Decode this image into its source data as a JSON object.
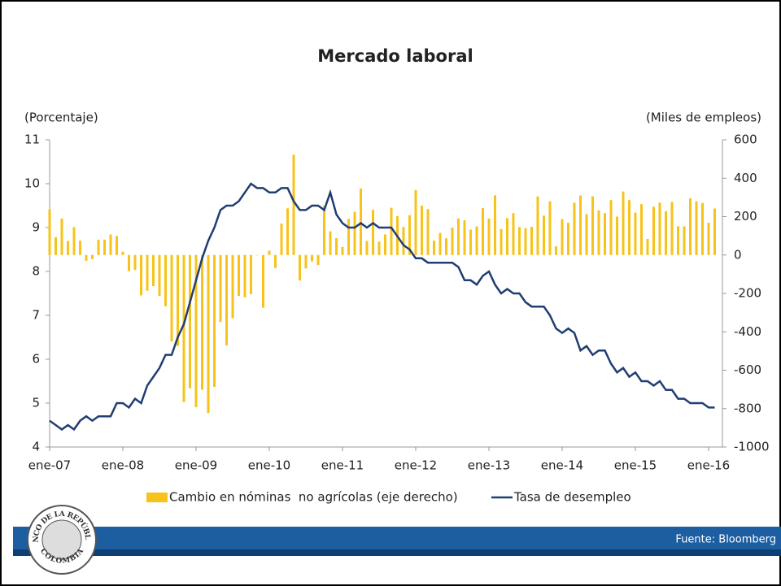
{
  "chart_data": {
    "type": "bar_line",
    "title": "Mercado laboral",
    "y_label": "(Porcentaje)",
    "y2_label": "(Miles de empleos)",
    "source": "Fuente: Bloomberg",
    "logo": {
      "top": "BANCO DE LA REPÚBLICA",
      "bottom": "COLOMBIA"
    },
    "categories": [
      "ene-07",
      null,
      null,
      null,
      null,
      null,
      null,
      null,
      null,
      null,
      null,
      null,
      "ene-08",
      null,
      null,
      null,
      null,
      null,
      null,
      null,
      null,
      null,
      null,
      null,
      "ene-09",
      null,
      null,
      null,
      null,
      null,
      null,
      null,
      null,
      null,
      null,
      null,
      "ene-10",
      null,
      null,
      null,
      null,
      null,
      null,
      null,
      null,
      null,
      null,
      null,
      "ene-11",
      null,
      null,
      null,
      null,
      null,
      null,
      null,
      null,
      null,
      null,
      null,
      "ene-12",
      null,
      null,
      null,
      null,
      null,
      null,
      null,
      null,
      null,
      null,
      null,
      "ene-13",
      null,
      null,
      null,
      null,
      null,
      null,
      null,
      null,
      null,
      null,
      null,
      "ene-14",
      null,
      null,
      null,
      null,
      null,
      null,
      null,
      null,
      null,
      null,
      null,
      "ene-15",
      null,
      null,
      null,
      null,
      null,
      null,
      null,
      null,
      null,
      null,
      null,
      "ene-16",
      null
    ],
    "series": [
      {
        "name": "Cambio en nóminas  no agrícolas (eje derecho)",
        "type": "bar",
        "axis": "y2",
        "color": "#f7c31a",
        "values": [
          238,
          93,
          190,
          73,
          145,
          75,
          -30,
          -21,
          80,
          80,
          107,
          99,
          17,
          -84,
          -78,
          -210,
          -186,
          -162,
          -213,
          -267,
          -450,
          -474,
          -766,
          -694,
          -793,
          -702,
          -823,
          -687,
          -349,
          -471,
          -329,
          -213,
          -220,
          -204,
          -2,
          -275,
          23,
          -68,
          164,
          243,
          522,
          -133,
          -70,
          -34,
          -52,
          257,
          123,
          88,
          42,
          188,
          225,
          346,
          73,
          235,
          70,
          107,
          246,
          202,
          146,
          207,
          338,
          257,
          239,
          75,
          115,
          87,
          143,
          190,
          181,
          132,
          149,
          244,
          190,
          311,
          135,
          192,
          218,
          146,
          140,
          147,
          305,
          205,
          280,
          45,
          187,
          168,
          272,
          310,
          213,
          306,
          232,
          218,
          286,
          200,
          331,
          286,
          221,
          265,
          84,
          251,
          273,
          228,
          277,
          150,
          149,
          295,
          280,
          271,
          168,
          242
        ]
      },
      {
        "name": "Tasa de desempleo",
        "type": "line",
        "axis": "y",
        "color": "#1f3e72",
        "values": [
          4.6,
          4.5,
          4.4,
          4.5,
          4.4,
          4.6,
          4.7,
          4.6,
          4.7,
          4.7,
          4.7,
          5.0,
          5.0,
          4.9,
          5.1,
          5.0,
          5.4,
          5.6,
          5.8,
          6.1,
          6.1,
          6.5,
          6.8,
          7.3,
          7.8,
          8.3,
          8.7,
          9.0,
          9.4,
          9.5,
          9.5,
          9.6,
          9.8,
          10.0,
          9.9,
          9.9,
          9.8,
          9.8,
          9.9,
          9.9,
          9.6,
          9.4,
          9.4,
          9.5,
          9.5,
          9.4,
          9.8,
          9.3,
          9.1,
          9.0,
          9.0,
          9.1,
          9.0,
          9.1,
          9.0,
          9.0,
          9.0,
          8.8,
          8.6,
          8.5,
          8.3,
          8.3,
          8.2,
          8.2,
          8.2,
          8.2,
          8.2,
          8.1,
          7.8,
          7.8,
          7.7,
          7.9,
          8.0,
          7.7,
          7.5,
          7.6,
          7.5,
          7.5,
          7.3,
          7.2,
          7.2,
          7.2,
          7.0,
          6.7,
          6.6,
          6.7,
          6.6,
          6.2,
          6.3,
          6.1,
          6.2,
          6.2,
          5.9,
          5.7,
          5.8,
          5.6,
          5.7,
          5.5,
          5.5,
          5.4,
          5.5,
          5.3,
          5.3,
          5.1,
          5.1,
          5.0,
          5.0,
          5.0,
          4.9,
          4.9
        ]
      }
    ],
    "ylim": [
      4,
      11
    ],
    "yticks": [
      4,
      5,
      6,
      7,
      8,
      9,
      10,
      11
    ],
    "y2lim": [
      -1000,
      600
    ],
    "y2ticks": [
      -1000,
      -800,
      -600,
      -400,
      -200,
      0,
      200,
      400,
      600
    ]
  }
}
